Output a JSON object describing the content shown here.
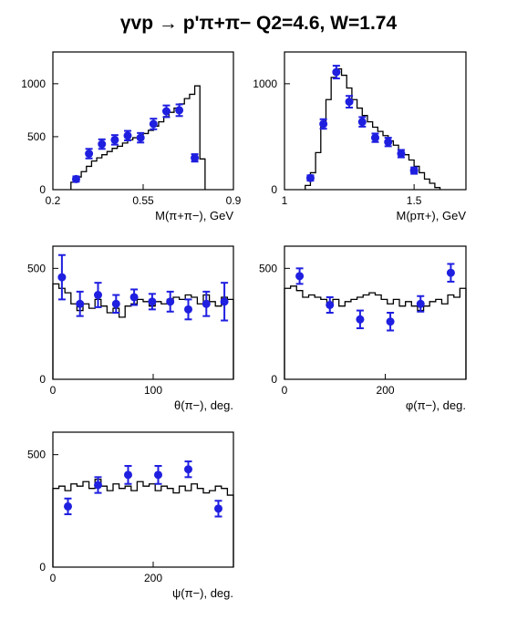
{
  "title": "γvp → p'π+π−   Q2=4.6, W=1.74",
  "colors": {
    "frame": "#000000",
    "histogram": "#000000",
    "points": "#1f1fe0"
  },
  "chart_data": [
    {
      "type": "scatter",
      "xlabel": "M(π+π−), GeV",
      "xlim": [
        0.2,
        0.9
      ],
      "ylim": [
        0,
        1300
      ],
      "xticks": [
        "0.2",
        "0.55",
        "0.9"
      ],
      "yticks": [
        "0",
        "500",
        "1000"
      ],
      "histogram": {
        "edges": [
          0.27,
          0.29,
          0.31,
          0.33,
          0.35,
          0.37,
          0.39,
          0.41,
          0.43,
          0.45,
          0.47,
          0.49,
          0.51,
          0.53,
          0.55,
          0.57,
          0.59,
          0.61,
          0.63,
          0.65,
          0.67,
          0.69,
          0.71,
          0.73,
          0.75,
          0.77,
          0.79
        ],
        "values": [
          70,
          120,
          170,
          220,
          270,
          300,
          330,
          360,
          390,
          410,
          440,
          470,
          490,
          510,
          530,
          560,
          600,
          640,
          690,
          730,
          770,
          810,
          860,
          900,
          980,
          290
        ]
      },
      "points": {
        "x": [
          0.29,
          0.34,
          0.39,
          0.44,
          0.49,
          0.54,
          0.59,
          0.64,
          0.69,
          0.75
        ],
        "y": [
          100,
          340,
          430,
          470,
          510,
          490,
          620,
          740,
          750,
          300
        ],
        "err": [
          25,
          45,
          45,
          45,
          45,
          45,
          50,
          55,
          55,
          35
        ]
      }
    },
    {
      "type": "scatter",
      "xlabel": "M(pπ+), GeV",
      "xlim": [
        1.0,
        1.7
      ],
      "ylim": [
        0,
        1300
      ],
      "xticks": [
        "1",
        "1.5"
      ],
      "yticks": [
        "0",
        "1000"
      ],
      "histogram": {
        "edges": [
          1.08,
          1.1,
          1.12,
          1.14,
          1.16,
          1.18,
          1.2,
          1.22,
          1.24,
          1.26,
          1.28,
          1.3,
          1.32,
          1.34,
          1.36,
          1.38,
          1.4,
          1.42,
          1.44,
          1.46,
          1.48,
          1.5,
          1.52,
          1.54,
          1.56,
          1.58,
          1.6
        ],
        "values": [
          40,
          160,
          350,
          600,
          850,
          1060,
          1140,
          1080,
          960,
          850,
          770,
          700,
          640,
          590,
          550,
          510,
          460,
          420,
          370,
          330,
          280,
          220,
          160,
          100,
          60,
          20
        ]
      },
      "points": {
        "x": [
          1.1,
          1.15,
          1.2,
          1.25,
          1.3,
          1.35,
          1.4,
          1.45,
          1.5
        ],
        "y": [
          110,
          620,
          1110,
          830,
          640,
          490,
          450,
          340,
          180
        ],
        "err": [
          25,
          45,
          60,
          55,
          45,
          40,
          40,
          35,
          30
        ]
      }
    },
    {
      "type": "scatter",
      "xlabel": "θ(π−), deg.",
      "xlim": [
        0,
        180
      ],
      "ylim": [
        0,
        600
      ],
      "xticks": [
        "0",
        "100"
      ],
      "yticks": [
        "0",
        "500"
      ],
      "histogram": {
        "edges": [
          0,
          6,
          12,
          18,
          24,
          30,
          36,
          42,
          48,
          54,
          60,
          66,
          72,
          78,
          84,
          90,
          96,
          102,
          108,
          114,
          120,
          126,
          132,
          138,
          144,
          150,
          156,
          162,
          168,
          174,
          180
        ],
        "values": [
          430,
          410,
          390,
          340,
          310,
          340,
          320,
          360,
          330,
          300,
          320,
          280,
          330,
          340,
          360,
          350,
          330,
          350,
          340,
          360,
          370,
          360,
          380,
          370,
          340,
          380,
          350,
          330,
          370,
          360
        ]
      },
      "points": {
        "x": [
          9,
          27,
          45,
          63,
          81,
          99,
          117,
          135,
          153,
          171
        ],
        "y": [
          460,
          340,
          380,
          340,
          370,
          350,
          350,
          315,
          340,
          350
        ],
        "err": [
          100,
          55,
          55,
          40,
          35,
          35,
          45,
          45,
          55,
          85
        ]
      }
    },
    {
      "type": "scatter",
      "xlabel": "φ(π−), deg.",
      "xlim": [
        0,
        360
      ],
      "ylim": [
        0,
        600
      ],
      "xticks": [
        "0",
        "200"
      ],
      "yticks": [
        "0",
        "500"
      ],
      "histogram": {
        "edges": [
          0,
          12,
          24,
          36,
          48,
          60,
          72,
          84,
          96,
          108,
          120,
          132,
          144,
          156,
          168,
          180,
          192,
          204,
          216,
          228,
          240,
          252,
          264,
          276,
          288,
          300,
          312,
          324,
          336,
          348,
          360
        ],
        "values": [
          410,
          420,
          400,
          370,
          380,
          370,
          360,
          340,
          360,
          330,
          350,
          360,
          370,
          380,
          390,
          380,
          360,
          340,
          360,
          330,
          350,
          330,
          310,
          330,
          350,
          360,
          340,
          380,
          370,
          410
        ]
      },
      "points": {
        "x": [
          30,
          90,
          150,
          210,
          270,
          330
        ],
        "y": [
          465,
          335,
          270,
          260,
          340,
          480
        ],
        "err": [
          35,
          35,
          40,
          40,
          35,
          40
        ]
      }
    },
    {
      "type": "scatter",
      "xlabel": "ψ(π−), deg.",
      "xlim": [
        0,
        360
      ],
      "ylim": [
        0,
        600
      ],
      "xticks": [
        "0",
        "200"
      ],
      "yticks": [
        "0",
        "500"
      ],
      "histogram": {
        "edges": [
          0,
          12,
          24,
          36,
          48,
          60,
          72,
          84,
          96,
          108,
          120,
          132,
          144,
          156,
          168,
          180,
          192,
          204,
          216,
          228,
          240,
          252,
          264,
          276,
          288,
          300,
          312,
          324,
          336,
          348,
          360
        ],
        "values": [
          350,
          360,
          340,
          370,
          360,
          380,
          350,
          390,
          360,
          340,
          370,
          350,
          360,
          340,
          380,
          360,
          370,
          340,
          360,
          350,
          330,
          360,
          340,
          370,
          350,
          330,
          340,
          360,
          350,
          320
        ]
      },
      "points": {
        "x": [
          30,
          90,
          150,
          210,
          270,
          330
        ],
        "y": [
          270,
          365,
          410,
          410,
          435,
          260
        ],
        "err": [
          35,
          35,
          40,
          40,
          35,
          35
        ]
      }
    }
  ]
}
